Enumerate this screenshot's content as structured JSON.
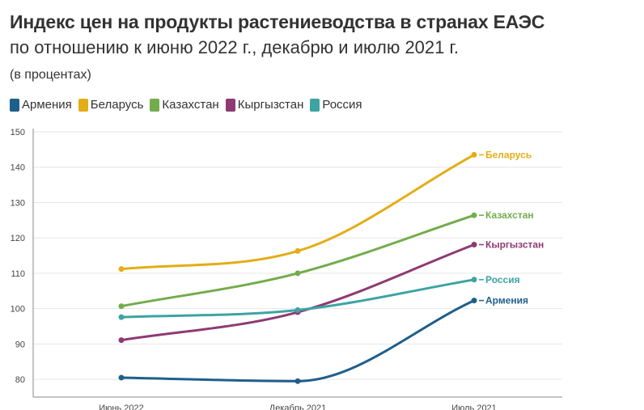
{
  "chart_data": {
    "type": "line",
    "title": "Индекс цен на продукты растениеводства в странах ЕАЭС",
    "subtitle": "по отношению к июню 2022 г., декабрю и июлю 2021 г.",
    "unit": "(в процентах)",
    "categories": [
      "Июнь 2022",
      "Декабрь 2021",
      "Июль 2021"
    ],
    "ylim": [
      75,
      150
    ],
    "yticks": [
      80,
      90,
      100,
      110,
      120,
      130,
      140,
      150
    ],
    "grid": true,
    "legend_position": "top-left",
    "series": [
      {
        "name": "Армения",
        "color": "#1f5f8b",
        "values": [
          80.5,
          79.5,
          102.3
        ]
      },
      {
        "name": "Беларусь",
        "color": "#e3ad17",
        "values": [
          111.2,
          116.3,
          143.5
        ]
      },
      {
        "name": "Казахстан",
        "color": "#73ac4c",
        "values": [
          100.7,
          110.0,
          126.4
        ]
      },
      {
        "name": "Кыргызстан",
        "color": "#8e3a73",
        "values": [
          91.1,
          99.0,
          118.1
        ]
      },
      {
        "name": "Россия",
        "color": "#3ea3a3",
        "values": [
          97.6,
          99.6,
          108.2
        ]
      }
    ]
  }
}
